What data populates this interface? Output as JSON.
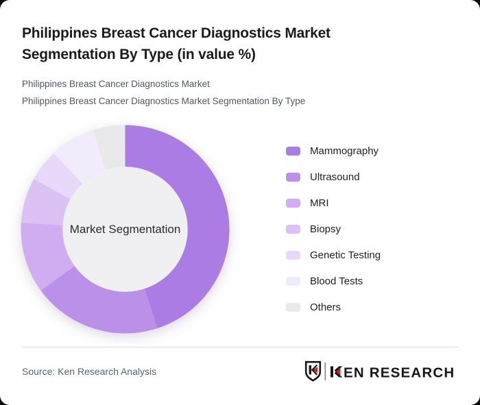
{
  "page": {
    "background_color": "#0a0a0a",
    "card_color": "#ffffff"
  },
  "header": {
    "title": "Philippines Breast Cancer Diagnostics Market Segmentation By Type (in value %)",
    "subtitle_line1": "Philippines Breast Cancer Diagnostics Market",
    "subtitle_line2": "Philippines Breast Cancer Diagnostics Market Segmentation By Type"
  },
  "chart_data": {
    "type": "pie",
    "variant": "donut",
    "title": "Philippines Breast Cancer Diagnostics Market Segmentation By Type (in value %)",
    "center_label": "Market Segmentation",
    "unit": "percent of value",
    "categories": [
      "Mammography",
      "Ultrasound",
      "MRI",
      "Biopsy",
      "Genetic Testing",
      "Blood Tests",
      "Others"
    ],
    "values": [
      45,
      20,
      11,
      7,
      5,
      7,
      5
    ],
    "colors": [
      "#ab7ce4",
      "#bb90e9",
      "#cfadf0",
      "#dbc1f4",
      "#e8d8f9",
      "#f2ebfb",
      "#e9e8ea"
    ],
    "hole_color": "#f0eff1",
    "inner_radius_ratio": 0.6,
    "start_angle_deg": 0,
    "direction": "clockwise",
    "legend_position": "right"
  },
  "footer": {
    "source": "Source: Ken Research Analysis",
    "brand": "KEN RESEARCH",
    "brand_red": "#c8252c",
    "brand_black": "#171717"
  }
}
